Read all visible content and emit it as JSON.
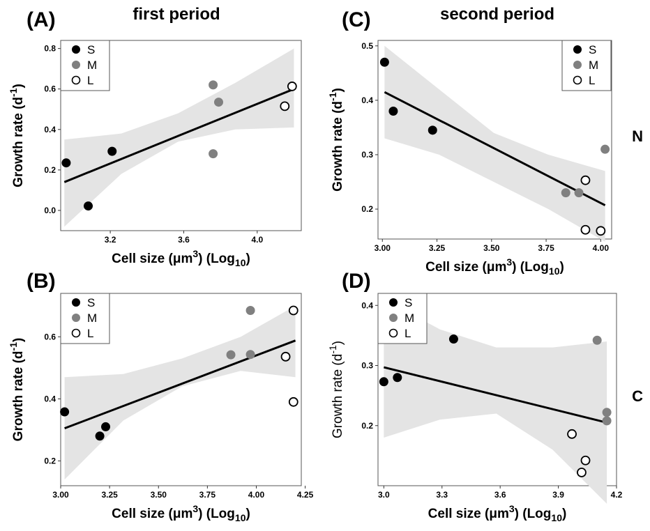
{
  "titles": {
    "first_period": "first period",
    "second_period": "second period"
  },
  "row_labels": {
    "top": "N",
    "bottom": "C"
  },
  "chart_data": [
    {
      "panel": "(A)",
      "type": "scatter",
      "title": "first period",
      "xlabel": "Cell size (μm3) (Log10)",
      "ylabel": "Growth rate (d-1)",
      "xlim": [
        2.93,
        4.24
      ],
      "ylim": [
        -0.1,
        0.84
      ],
      "xticks": [
        3.2,
        3.6,
        4.0
      ],
      "xtick_labels": [
        "3.2",
        "3.6",
        "4.0"
      ],
      "yticks": [
        0.0,
        0.2,
        0.4,
        0.6,
        0.8
      ],
      "ytick_labels": [
        "0.0",
        "0.2",
        "0.4",
        "0.6",
        "0.8"
      ],
      "legend": [
        "S",
        "M",
        "L"
      ],
      "legend_position": "top-left",
      "series": [
        {
          "name": "S",
          "color": "#000000",
          "x": [
            2.96,
            3.08,
            3.21
          ],
          "y": [
            0.235,
            0.022,
            0.292
          ]
        },
        {
          "name": "M",
          "color": "#808080",
          "x": [
            3.76,
            3.76,
            3.79
          ],
          "y": [
            0.62,
            0.28,
            0.535
          ]
        },
        {
          "name": "L",
          "color": "#ffffff",
          "x": [
            4.15,
            4.19
          ],
          "y": [
            0.515,
            0.613
          ]
        }
      ],
      "fit": {
        "x": [
          2.95,
          4.2
        ],
        "y": [
          0.14,
          0.6
        ]
      },
      "ci": {
        "x": [
          2.95,
          3.26,
          3.57,
          3.88,
          4.2
        ],
        "upper": [
          0.35,
          0.38,
          0.48,
          0.63,
          0.8
        ],
        "lower": [
          -0.08,
          0.18,
          0.34,
          0.4,
          0.41
        ]
      }
    },
    {
      "panel": "(B)",
      "type": "scatter",
      "title": "",
      "xlabel": "Cell size (μm3) (Log10)",
      "ylabel": "Growth rate (d-1)",
      "xlim": [
        3.0,
        4.23
      ],
      "ylim": [
        0.12,
        0.74
      ],
      "xticks": [
        3.0,
        3.25,
        3.5,
        3.75,
        4.0,
        4.25
      ],
      "xtick_labels": [
        "3.00",
        "3.25",
        "3.50",
        "3.75",
        "4.00",
        "4.25"
      ],
      "yticks": [
        0.2,
        0.4,
        0.6
      ],
      "ytick_labels": [
        "0.2",
        "0.4",
        "0.6"
      ],
      "legend": [
        "S",
        "M",
        "L"
      ],
      "legend_position": "top-left",
      "series": [
        {
          "name": "S",
          "color": "#000000",
          "x": [
            3.02,
            3.2,
            3.23
          ],
          "y": [
            0.358,
            0.28,
            0.31
          ]
        },
        {
          "name": "M",
          "color": "#808080",
          "x": [
            3.87,
            3.97,
            3.97
          ],
          "y": [
            0.542,
            0.543,
            0.685
          ]
        },
        {
          "name": "L",
          "color": "#ffffff",
          "x": [
            4.15,
            4.19,
            4.19
          ],
          "y": [
            0.536,
            0.685,
            0.39
          ]
        }
      ],
      "fit": {
        "x": [
          3.02,
          4.2
        ],
        "y": [
          0.305,
          0.588
        ]
      },
      "ci": {
        "x": [
          3.02,
          3.32,
          3.62,
          3.92,
          4.2
        ],
        "upper": [
          0.47,
          0.48,
          0.53,
          0.6,
          0.7
        ],
        "lower": [
          0.14,
          0.33,
          0.44,
          0.49,
          0.47
        ]
      }
    },
    {
      "panel": "(C)",
      "type": "scatter",
      "title": "second period",
      "xlabel": "Cell size (μm3) (Log10)",
      "ylabel": "Growth rate (d-1)",
      "xlim": [
        2.98,
        4.05
      ],
      "ylim": [
        0.145,
        0.51
      ],
      "xticks": [
        3.0,
        3.25,
        3.5,
        3.75,
        4.0
      ],
      "xtick_labels": [
        "3.00",
        "3.25",
        "3.50",
        "3.75",
        "4.00"
      ],
      "yticks": [
        0.2,
        0.3,
        0.4,
        0.5
      ],
      "ytick_labels": [
        "0.2",
        "0.3",
        "0.4",
        "0.5"
      ],
      "legend": [
        "S",
        "M",
        "L"
      ],
      "legend_position": "top-right",
      "series": [
        {
          "name": "S",
          "color": "#000000",
          "x": [
            3.01,
            3.05,
            3.23
          ],
          "y": [
            0.47,
            0.38,
            0.345
          ]
        },
        {
          "name": "M",
          "color": "#808080",
          "x": [
            3.84,
            3.9,
            4.02
          ],
          "y": [
            0.23,
            0.23,
            0.31
          ]
        },
        {
          "name": "L",
          "color": "#ffffff",
          "x": [
            3.93,
            3.93,
            4.0
          ],
          "y": [
            0.253,
            0.162,
            0.16
          ]
        }
      ],
      "fit": {
        "x": [
          3.01,
          4.02
        ],
        "y": [
          0.415,
          0.207
        ]
      },
      "ci": {
        "x": [
          3.01,
          3.26,
          3.51,
          3.76,
          4.02
        ],
        "upper": [
          0.5,
          0.42,
          0.34,
          0.3,
          0.27
        ],
        "lower": [
          0.33,
          0.3,
          0.25,
          0.2,
          0.14
        ]
      }
    },
    {
      "panel": "(D)",
      "type": "scatter",
      "title": "",
      "xlabel": "Cell size (μm3) (Log10)",
      "ylabel": "Growth rate (d-1)",
      "xlim": [
        2.97,
        4.2
      ],
      "ylim": [
        0.1,
        0.42
      ],
      "xticks": [
        3.0,
        3.3,
        3.6,
        3.9,
        4.2
      ],
      "xtick_labels": [
        "3.0",
        "3.3",
        "3.6",
        "3.9",
        "4.2"
      ],
      "yticks": [
        0.2,
        0.3,
        0.4
      ],
      "ytick_labels": [
        "0.2",
        "0.3",
        "0.4"
      ],
      "legend": [
        "S",
        "M",
        "L"
      ],
      "legend_position": "top-left",
      "series": [
        {
          "name": "S",
          "color": "#000000",
          "x": [
            3.0,
            3.07,
            3.36
          ],
          "y": [
            0.273,
            0.28,
            0.344
          ]
        },
        {
          "name": "M",
          "color": "#808080",
          "x": [
            4.1,
            4.15,
            4.15
          ],
          "y": [
            0.342,
            0.222,
            0.208
          ]
        },
        {
          "name": "L",
          "color": "#ffffff",
          "x": [
            3.97,
            4.02,
            4.04
          ],
          "y": [
            0.186,
            0.122,
            0.142
          ]
        }
      ],
      "fit": {
        "x": [
          3.0,
          4.15
        ],
        "y": [
          0.297,
          0.205
        ]
      },
      "ci": {
        "x": [
          3.0,
          3.29,
          3.58,
          3.87,
          4.15
        ],
        "upper": [
          0.41,
          0.36,
          0.33,
          0.33,
          0.34
        ],
        "lower": [
          0.18,
          0.21,
          0.22,
          0.16,
          0.07
        ]
      }
    }
  ]
}
